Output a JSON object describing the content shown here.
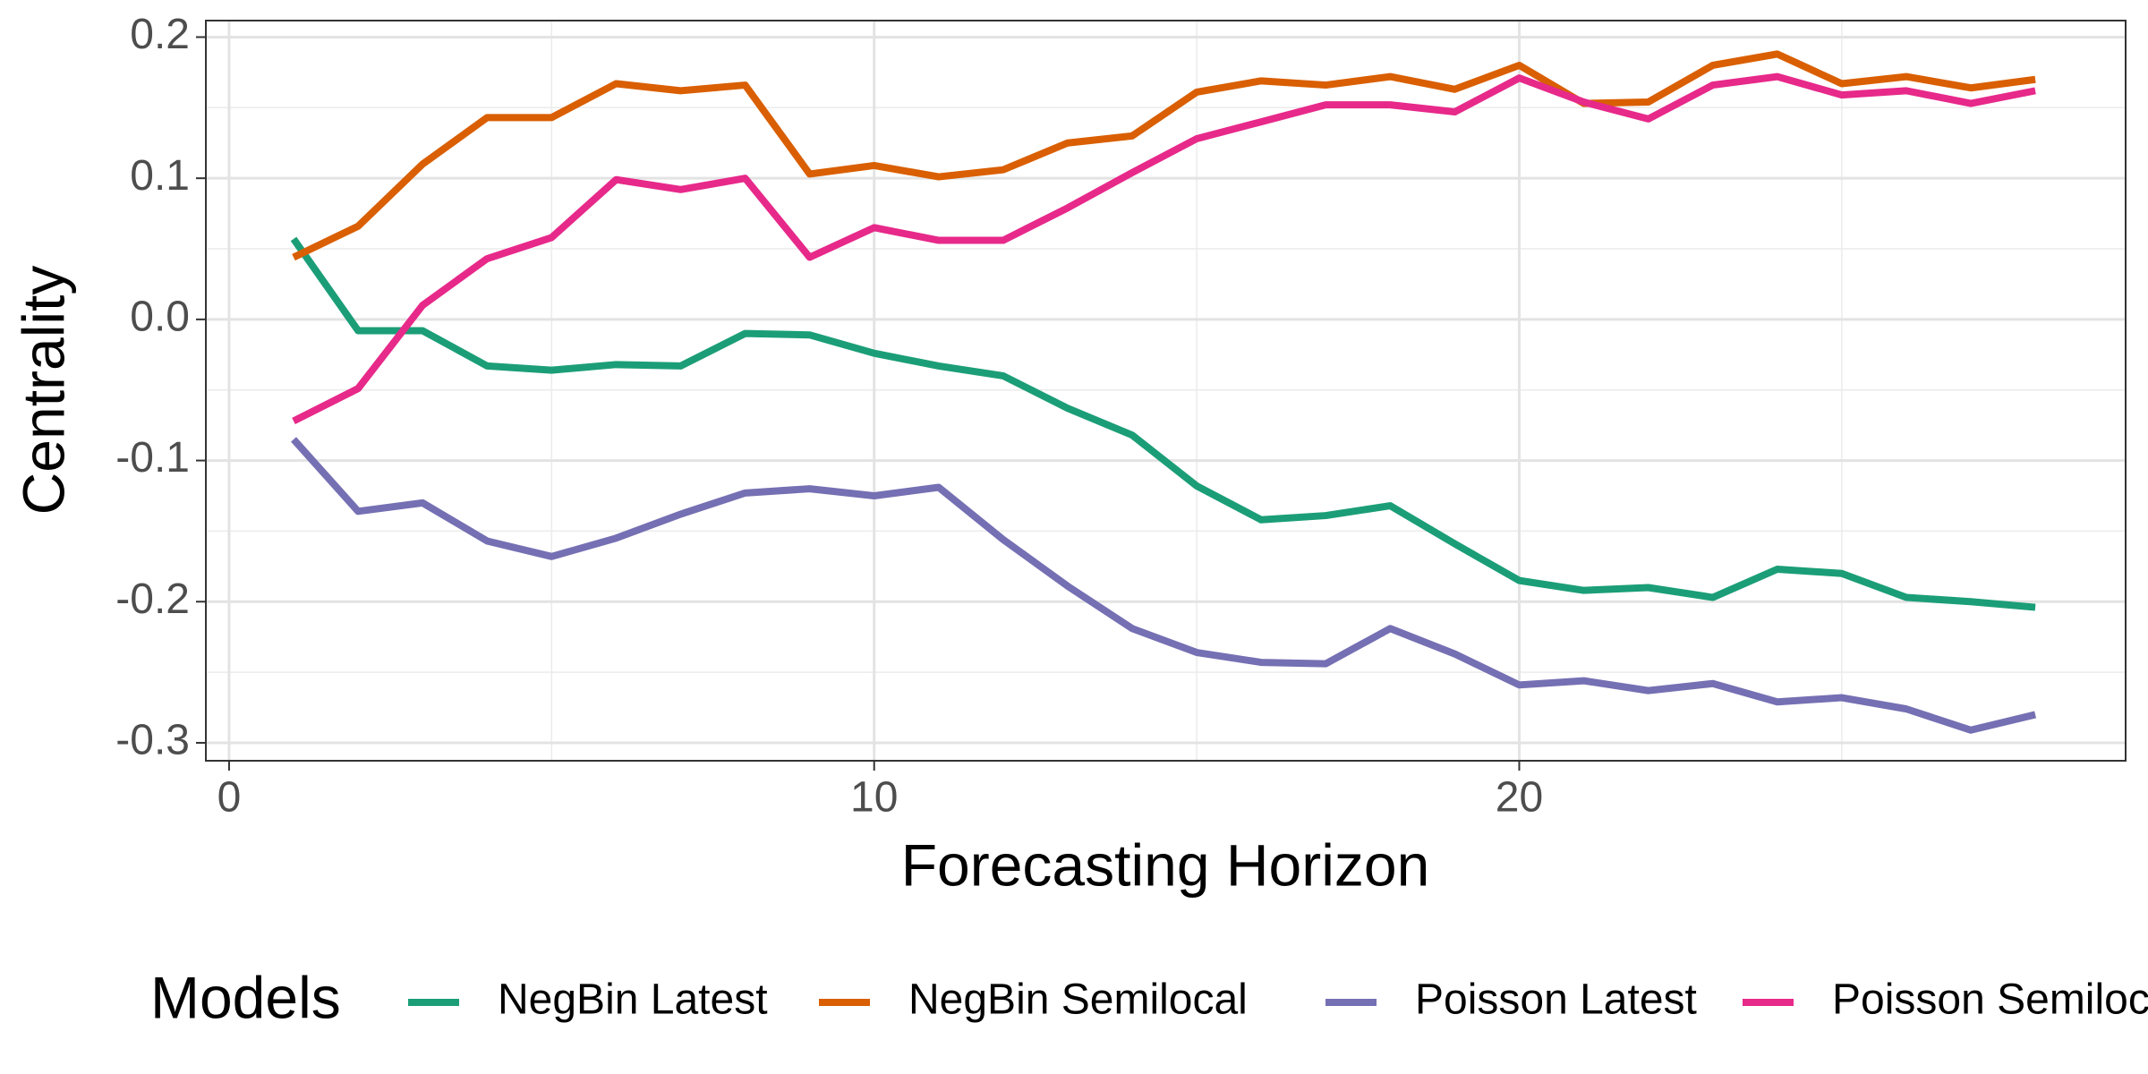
{
  "chart_data": {
    "type": "line",
    "x_label": "Forecasting Horizon",
    "y_label": "Centrality",
    "legend_title": "Models",
    "legend_position": "bottom",
    "grid": true,
    "xlim": [
      -0.36,
      29.4
    ],
    "ylim": [
      -0.3127,
      0.2117
    ],
    "xticks": [
      0,
      10,
      20
    ],
    "x_minor_ticks": [
      5,
      15,
      25
    ],
    "yticks": [
      0.2,
      0.1,
      {
        "value": 0,
        "label": "0.0"
      },
      -0.1,
      -0.2,
      -0.3
    ],
    "y_minor_ticks": [
      0.15,
      0.05,
      -0.05,
      -0.15,
      -0.25
    ],
    "x": [
      1,
      2,
      3,
      4,
      5,
      6,
      7,
      8,
      9,
      10,
      11,
      12,
      13,
      14,
      15,
      16,
      17,
      18,
      19,
      20,
      21,
      22,
      23,
      24,
      25,
      26,
      27,
      28
    ],
    "series": [
      {
        "name": "NegBin Latest",
        "color": "#1b9e77",
        "values": [
          0.057,
          -0.008,
          -0.008,
          -0.033,
          -0.036,
          -0.032,
          -0.033,
          -0.01,
          -0.011,
          -0.024,
          -0.033,
          -0.04,
          -0.063,
          -0.082,
          -0.118,
          -0.142,
          -0.139,
          -0.132,
          -0.159,
          -0.185,
          -0.192,
          -0.19,
          -0.197,
          -0.177,
          -0.18,
          -0.197,
          -0.2,
          -0.204
        ]
      },
      {
        "name": "NegBin Semilocal",
        "color": "#d95f02",
        "values": [
          0.044,
          0.066,
          0.11,
          0.143,
          0.143,
          0.167,
          0.162,
          0.166,
          0.103,
          0.109,
          0.101,
          0.106,
          0.125,
          0.13,
          0.161,
          0.169,
          0.166,
          0.172,
          0.163,
          0.18,
          0.153,
          0.154,
          0.18,
          0.188,
          0.167,
          0.172,
          0.164,
          0.17
        ]
      },
      {
        "name": "Poisson Latest",
        "color": "#7570b3",
        "values": [
          -0.085,
          -0.136,
          -0.13,
          -0.157,
          -0.168,
          -0.155,
          -0.138,
          -0.123,
          -0.12,
          -0.125,
          -0.119,
          -0.156,
          -0.189,
          -0.219,
          -0.236,
          -0.243,
          -0.244,
          -0.219,
          -0.237,
          -0.259,
          -0.256,
          -0.263,
          -0.258,
          -0.271,
          -0.268,
          -0.276,
          -0.291,
          -0.28
        ]
      },
      {
        "name": "Poisson Semilocal",
        "color": "#e7298a",
        "values": [
          -0.072,
          -0.049,
          0.01,
          0.043,
          0.058,
          0.099,
          0.092,
          0.1,
          0.044,
          0.065,
          0.056,
          0.056,
          0.079,
          0.104,
          0.128,
          0.14,
          0.152,
          0.152,
          0.147,
          0.171,
          0.154,
          0.142,
          0.166,
          0.172,
          0.159,
          0.162,
          0.153,
          0.162
        ]
      }
    ]
  }
}
